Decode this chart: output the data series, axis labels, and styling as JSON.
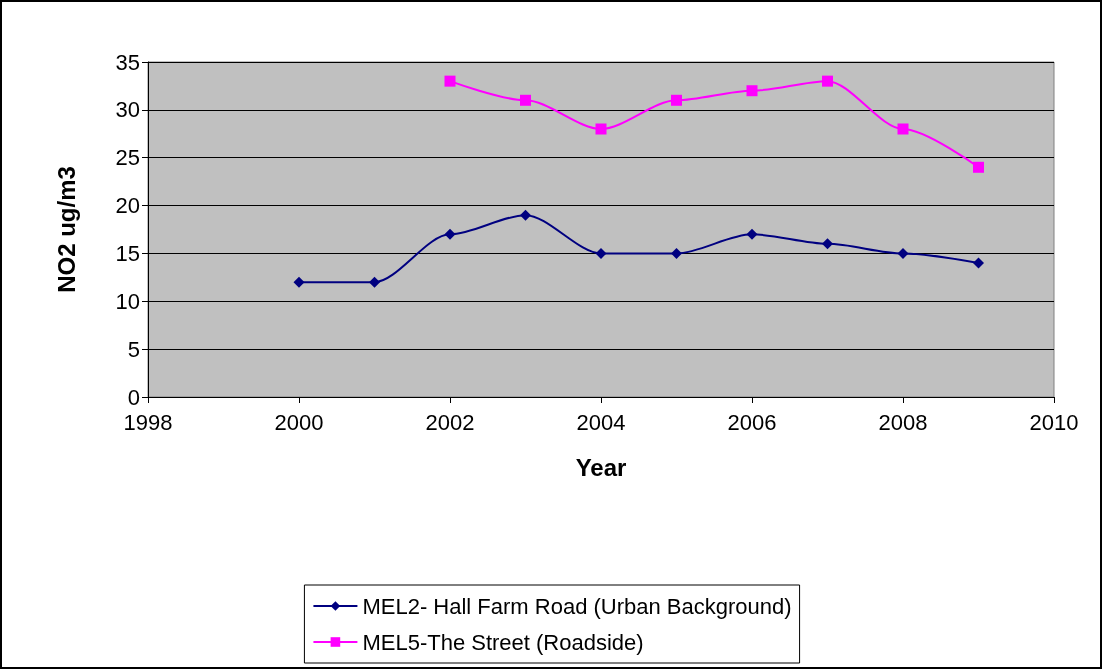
{
  "chart_data": {
    "type": "line",
    "xlabel": "Year",
    "ylabel": "NO2 ug/m3",
    "xlim": [
      1998,
      2010
    ],
    "xticks": [
      1998,
      2000,
      2002,
      2004,
      2006,
      2008,
      2010
    ],
    "ylim": [
      0,
      35
    ],
    "yticks": [
      0,
      5,
      10,
      15,
      20,
      25,
      30,
      35
    ],
    "grid": "y",
    "legend": "bottom",
    "series": [
      {
        "name": "MEL2- Hall Farm Road (Urban Background)",
        "color": "#000080",
        "marker": "diamond",
        "x": [
          2000,
          2001,
          2002,
          2003,
          2004,
          2005,
          2006,
          2007,
          2008,
          2009
        ],
        "values": [
          12,
          12,
          17,
          19,
          15,
          15,
          17,
          16,
          15,
          14
        ]
      },
      {
        "name": "MEL5-The Street (Roadside)",
        "color": "#ff00ff",
        "marker": "square",
        "x": [
          2002,
          2003,
          2004,
          2005,
          2006,
          2007,
          2008,
          2009
        ],
        "values": [
          33,
          31,
          28,
          31,
          32,
          33,
          28,
          24
        ]
      }
    ]
  }
}
